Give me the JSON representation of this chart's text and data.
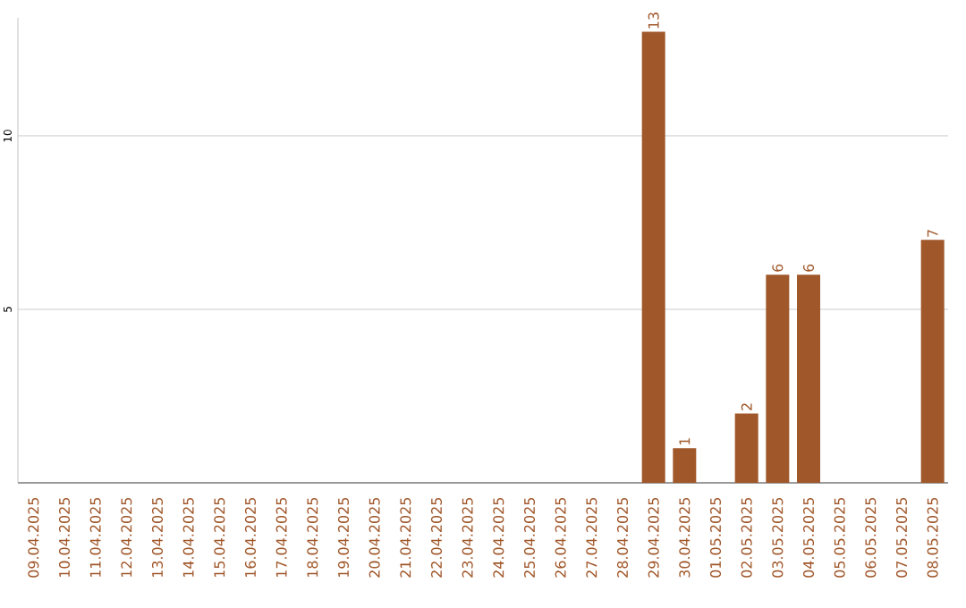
{
  "chart_data": {
    "type": "bar",
    "categories": [
      "09.04.2025",
      "10.04.2025",
      "11.04.2025",
      "12.04.2025",
      "13.04.2025",
      "14.04.2025",
      "15.04.2025",
      "16.04.2025",
      "17.04.2025",
      "18.04.2025",
      "19.04.2025",
      "20.04.2025",
      "21.04.2025",
      "22.04.2025",
      "23.04.2025",
      "24.04.2025",
      "25.04.2025",
      "26.04.2025",
      "27.04.2025",
      "28.04.2025",
      "29.04.2025",
      "30.04.2025",
      "01.05.2025",
      "02.05.2025",
      "03.05.2025",
      "04.05.2025",
      "05.05.2025",
      "06.05.2025",
      "07.05.2025",
      "08.05.2025"
    ],
    "values": [
      0,
      0,
      0,
      0,
      0,
      0,
      0,
      0,
      0,
      0,
      0,
      0,
      0,
      0,
      0,
      0,
      0,
      0,
      0,
      0,
      13,
      1,
      0,
      2,
      6,
      6,
      0,
      0,
      0,
      7
    ],
    "value_labels": [
      null,
      null,
      null,
      null,
      null,
      null,
      null,
      null,
      null,
      null,
      null,
      null,
      null,
      null,
      null,
      null,
      null,
      null,
      null,
      null,
      "13",
      "1",
      null,
      "2",
      "6",
      "6",
      null,
      null,
      null,
      "7"
    ],
    "color": "#a0572a",
    "ylim": [
      0,
      13.4
    ],
    "yticks": [
      5,
      10
    ],
    "grid": "y"
  }
}
